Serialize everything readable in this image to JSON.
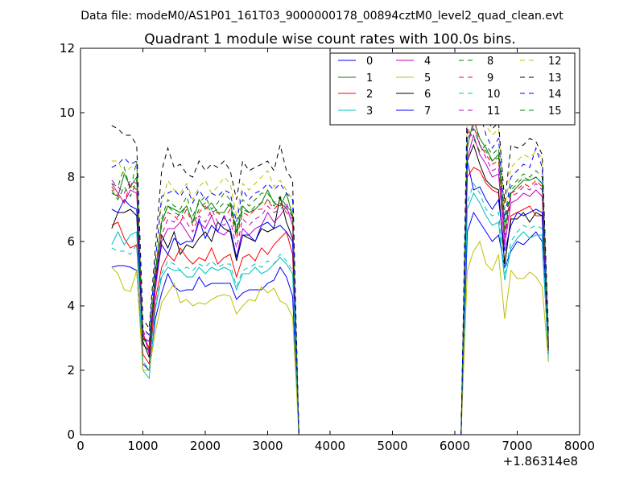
{
  "figure": {
    "suptitle": "Data file: modeM0/AS1P01_161T03_9000000178_00894cztM0_level2_quad_clean.evt"
  },
  "chart_data": {
    "type": "line",
    "title": "Quadrant 1 module wise count rates with 100.0s bins.",
    "xlabel": "",
    "ylabel": "",
    "x_offset_label": "+1.86314e8",
    "xlim": [
      0,
      8000
    ],
    "ylim": [
      0,
      12
    ],
    "x_ticks": [
      0,
      1000,
      2000,
      3000,
      4000,
      5000,
      6000,
      7000,
      8000
    ],
    "y_ticks": [
      0,
      2,
      4,
      6,
      8,
      10,
      12
    ],
    "x_tick_labels": [
      "0",
      "1000",
      "2000",
      "3000",
      "4000",
      "5000",
      "6000",
      "7000",
      "8000"
    ],
    "y_tick_labels": [
      "0",
      "2",
      "4",
      "6",
      "8",
      "10",
      "12"
    ],
    "legend_position": "upper right",
    "x": [
      500,
      600,
      700,
      800,
      900,
      1000,
      1100,
      1200,
      1300,
      1400,
      1500,
      1600,
      1700,
      1800,
      1900,
      2000,
      2100,
      2200,
      2300,
      2400,
      2500,
      2600,
      2700,
      2800,
      2900,
      3000,
      3100,
      3200,
      3300,
      3400,
      3500,
      3600,
      3700,
      3800,
      3900,
      4000,
      4100,
      4200,
      4300,
      4400,
      4500,
      4600,
      4700,
      4800,
      4900,
      5000,
      5100,
      5200,
      5300,
      5400,
      5500,
      5600,
      5700,
      5800,
      5900,
      6000,
      6100,
      6200,
      6300,
      6400,
      6500,
      6600,
      6700,
      6800,
      6900,
      7000,
      7100,
      7200,
      7300,
      7400,
      7500
    ],
    "series": [
      {
        "name": "0",
        "color": "#0000ff",
        "dash": "solid",
        "values": [
          5.2,
          5.25,
          5.25,
          5.2,
          5.1,
          2.2,
          2.0,
          3.6,
          4.4,
          5.0,
          4.6,
          4.45,
          4.5,
          4.5,
          4.9,
          4.6,
          4.7,
          4.7,
          4.7,
          4.7,
          4.2,
          4.4,
          4.5,
          4.5,
          4.5,
          4.7,
          4.8,
          5.2,
          4.9,
          4.3,
          0,
          0,
          0,
          0,
          0,
          0,
          0,
          0,
          0,
          0,
          0,
          0,
          0,
          0,
          0,
          0,
          0,
          0,
          0,
          0,
          0,
          0,
          0,
          0,
          0,
          0,
          0,
          6.3,
          6.9,
          6.6,
          6.3,
          6.0,
          6.2,
          5.2,
          5.7,
          6.0,
          5.9,
          6.1,
          6.3,
          6.0,
          2.5
        ]
      },
      {
        "name": "1",
        "color": "#008000",
        "dash": "solid",
        "values": [
          7.5,
          7.4,
          8.1,
          7.7,
          8.0,
          2.8,
          2.6,
          5.0,
          6.6,
          7.1,
          7.0,
          6.9,
          7.1,
          6.6,
          7.3,
          7.0,
          7.2,
          6.9,
          6.9,
          7.2,
          6.3,
          7.1,
          6.9,
          7.0,
          7.2,
          7.6,
          7.2,
          7.1,
          7.5,
          6.8,
          0,
          0,
          0,
          0,
          0,
          0,
          0,
          0,
          0,
          0,
          0,
          0,
          0,
          0,
          0,
          0,
          0,
          0,
          0,
          0,
          0,
          0,
          0,
          0,
          0,
          0,
          0,
          8.9,
          9.8,
          9.2,
          8.9,
          8.5,
          8.7,
          6.3,
          7.5,
          7.7,
          7.9,
          7.9,
          8.0,
          7.8,
          2.7
        ]
      },
      {
        "name": "2",
        "color": "#ff0000",
        "dash": "solid",
        "values": [
          6.5,
          6.6,
          6.1,
          5.8,
          5.9,
          2.5,
          2.2,
          4.2,
          5.2,
          5.6,
          5.4,
          5.8,
          5.5,
          5.3,
          5.5,
          5.4,
          5.8,
          5.3,
          5.5,
          5.6,
          4.9,
          5.5,
          5.6,
          5.4,
          5.8,
          5.6,
          5.9,
          6.1,
          6.3,
          5.6,
          0,
          0,
          0,
          0,
          0,
          0,
          0,
          0,
          0,
          0,
          0,
          0,
          0,
          0,
          0,
          0,
          0,
          0,
          0,
          0,
          0,
          0,
          0,
          0,
          0,
          0,
          0,
          8.0,
          8.3,
          8.2,
          7.8,
          7.6,
          7.5,
          5.3,
          6.8,
          6.9,
          7.0,
          7.1,
          6.8,
          6.8,
          2.6
        ]
      },
      {
        "name": "3",
        "color": "#00bfbf",
        "dash": "solid",
        "values": [
          5.9,
          6.3,
          5.9,
          6.2,
          6.3,
          2.0,
          1.75,
          3.9,
          4.9,
          5.2,
          5.1,
          5.1,
          4.9,
          4.9,
          5.2,
          5.0,
          5.2,
          5.1,
          5.2,
          5.1,
          4.5,
          5.0,
          5.0,
          5.2,
          5.0,
          5.1,
          5.3,
          5.5,
          5.3,
          5.0,
          0,
          0,
          0,
          0,
          0,
          0,
          0,
          0,
          0,
          0,
          0,
          0,
          0,
          0,
          0,
          0,
          0,
          0,
          0,
          0,
          0,
          0,
          0,
          0,
          0,
          0,
          0,
          7.0,
          7.5,
          7.2,
          6.8,
          6.5,
          6.6,
          4.8,
          5.8,
          6.1,
          6.3,
          6.1,
          6.2,
          6.2,
          2.3
        ]
      },
      {
        "name": "4",
        "color": "#bf00bf",
        "dash": "solid",
        "values": [
          7.8,
          7.5,
          7.2,
          7.6,
          7.5,
          3.2,
          2.5,
          4.5,
          6.0,
          6.4,
          6.4,
          6.6,
          6.3,
          6.0,
          6.6,
          6.4,
          6.8,
          6.3,
          6.2,
          6.4,
          5.5,
          6.4,
          6.2,
          6.4,
          6.5,
          6.9,
          6.6,
          6.8,
          7.1,
          6.5,
          0,
          0,
          0,
          0,
          0,
          0,
          0,
          0,
          0,
          0,
          0,
          0,
          0,
          0,
          0,
          0,
          0,
          0,
          0,
          0,
          0,
          0,
          0,
          0,
          0,
          0,
          0,
          8.6,
          9.3,
          8.7,
          8.4,
          8.0,
          8.1,
          5.9,
          7.2,
          7.3,
          7.5,
          7.4,
          7.6,
          7.4,
          2.8
        ]
      },
      {
        "name": "5",
        "color": "#bfbf00",
        "dash": "solid",
        "values": [
          5.2,
          5.0,
          4.5,
          4.45,
          5.1,
          2.0,
          2.0,
          3.2,
          4.1,
          4.4,
          4.7,
          4.1,
          4.2,
          4.0,
          4.1,
          4.05,
          4.2,
          4.3,
          4.35,
          4.3,
          3.75,
          4.0,
          4.2,
          4.15,
          4.6,
          4.4,
          4.55,
          4.15,
          4.05,
          3.65,
          0,
          0,
          0,
          0,
          0,
          0,
          0,
          0,
          0,
          0,
          0,
          0,
          0,
          0,
          0,
          0,
          0,
          0,
          0,
          0,
          0,
          0,
          0,
          0,
          0,
          0,
          0,
          5.1,
          5.7,
          6.0,
          5.3,
          5.1,
          5.6,
          3.6,
          5.1,
          4.85,
          4.85,
          5.05,
          4.9,
          4.6,
          2.25
        ]
      },
      {
        "name": "6",
        "color": "#000000",
        "dash": "solid",
        "values": [
          6.4,
          6.9,
          6.9,
          7.0,
          6.8,
          2.9,
          2.4,
          4.8,
          6.2,
          5.8,
          6.3,
          5.6,
          5.9,
          5.8,
          6.1,
          6.3,
          6.0,
          6.6,
          6.4,
          6.3,
          5.4,
          6.2,
          6.1,
          6.0,
          6.4,
          6.3,
          6.4,
          7.4,
          6.6,
          6.1,
          0,
          0,
          0,
          0,
          0,
          0,
          0,
          0,
          0,
          0,
          0,
          0,
          0,
          0,
          0,
          0,
          0,
          0,
          0,
          0,
          0,
          0,
          0,
          0,
          0,
          0,
          0,
          8.5,
          9.0,
          8.4,
          7.9,
          7.7,
          7.6,
          5.3,
          6.7,
          6.7,
          6.9,
          6.6,
          6.9,
          6.8,
          2.6
        ]
      },
      {
        "name": "7",
        "color": "#0000ff",
        "dash": "solid",
        "values": [
          7.0,
          6.9,
          7.3,
          7.1,
          7.0,
          3.0,
          2.9,
          4.7,
          5.9,
          5.6,
          6.1,
          5.9,
          6.0,
          6.0,
          6.7,
          6.1,
          6.5,
          6.3,
          6.8,
          6.4,
          5.5,
          6.2,
          6.2,
          6.0,
          6.5,
          6.6,
          6.4,
          6.5,
          6.3,
          6.0,
          0,
          0,
          0,
          0,
          0,
          0,
          0,
          0,
          0,
          0,
          0,
          0,
          0,
          0,
          0,
          0,
          0,
          0,
          0,
          0,
          0,
          0,
          0,
          0,
          0,
          0,
          0,
          8.5,
          7.6,
          7.7,
          7.3,
          7.0,
          7.3,
          5.7,
          6.5,
          6.9,
          6.8,
          6.9,
          7.0,
          6.9,
          2.8
        ]
      },
      {
        "name": "8",
        "color": "#008000",
        "dash": "dashed",
        "values": [
          7.8,
          7.7,
          8.3,
          7.6,
          8.5,
          3.0,
          2.7,
          5.1,
          6.7,
          7.3,
          7.1,
          7.0,
          7.4,
          6.8,
          7.2,
          7.4,
          7.0,
          7.2,
          7.5,
          7.3,
          6.4,
          7.3,
          7.1,
          7.3,
          7.5,
          7.5,
          7.2,
          7.4,
          7.1,
          6.9,
          0,
          0,
          0,
          0,
          0,
          0,
          0,
          0,
          0,
          0,
          0,
          0,
          0,
          0,
          0,
          0,
          0,
          0,
          0,
          0,
          0,
          0,
          0,
          0,
          0,
          0,
          0,
          9.5,
          9.2,
          8.8,
          9.0,
          8.7,
          8.9,
          6.6,
          7.7,
          7.9,
          8.1,
          8.0,
          8.2,
          8.0,
          2.9
        ]
      },
      {
        "name": "9",
        "color": "#ff0000",
        "dash": "dashed",
        "values": [
          7.7,
          7.4,
          7.2,
          7.8,
          7.6,
          3.1,
          2.7,
          4.9,
          6.5,
          6.9,
          6.8,
          6.6,
          7.0,
          6.5,
          6.9,
          7.1,
          6.8,
          6.9,
          6.7,
          7.0,
          6.1,
          6.9,
          6.8,
          7.0,
          7.0,
          7.3,
          7.0,
          7.2,
          6.9,
          6.7,
          0,
          0,
          0,
          0,
          0,
          0,
          0,
          0,
          0,
          0,
          0,
          0,
          0,
          0,
          0,
          0,
          0,
          0,
          0,
          0,
          0,
          0,
          0,
          0,
          0,
          0,
          0,
          9.3,
          9.9,
          9.0,
          8.7,
          8.4,
          8.5,
          6.2,
          7.5,
          7.6,
          7.8,
          7.7,
          7.9,
          7.7,
          2.8
        ]
      },
      {
        "name": "10",
        "color": "#00bfbf",
        "dash": "dashed",
        "values": [
          5.8,
          5.7,
          5.7,
          5.6,
          5.9,
          2.3,
          2.0,
          4.0,
          5.0,
          5.4,
          5.3,
          5.1,
          5.2,
          5.1,
          5.3,
          5.2,
          5.4,
          5.2,
          5.3,
          5.3,
          4.6,
          5.1,
          5.2,
          5.3,
          5.2,
          5.4,
          5.3,
          5.6,
          5.4,
          5.1,
          0,
          0,
          0,
          0,
          0,
          0,
          0,
          0,
          0,
          0,
          0,
          0,
          0,
          0,
          0,
          0,
          0,
          0,
          0,
          0,
          0,
          0,
          0,
          0,
          0,
          0,
          0,
          7.2,
          7.8,
          7.5,
          7.0,
          6.8,
          6.9,
          5.0,
          6.0,
          6.3,
          6.5,
          6.4,
          6.5,
          6.4,
          2.4
        ]
      },
      {
        "name": "11",
        "color": "#bf00bf",
        "dash": "dashed",
        "values": [
          7.9,
          7.7,
          7.5,
          7.9,
          7.8,
          3.3,
          2.6,
          4.7,
          6.2,
          6.7,
          6.6,
          6.9,
          6.6,
          6.3,
          6.8,
          6.6,
          7.0,
          6.6,
          6.5,
          6.7,
          5.8,
          6.7,
          6.5,
          6.7,
          6.8,
          7.1,
          6.9,
          7.0,
          7.2,
          6.7,
          0,
          0,
          0,
          0,
          0,
          0,
          0,
          0,
          0,
          0,
          0,
          0,
          0,
          0,
          0,
          0,
          0,
          0,
          0,
          0,
          0,
          0,
          0,
          0,
          0,
          0,
          0,
          9.0,
          9.6,
          9.0,
          8.6,
          8.2,
          8.3,
          6.1,
          7.4,
          7.5,
          7.7,
          7.6,
          7.8,
          7.6,
          2.9
        ]
      },
      {
        "name": "12",
        "color": "#bfbf00",
        "dash": "dashed",
        "values": [
          8.5,
          8.5,
          8.1,
          8.3,
          8.4,
          3.4,
          3.0,
          5.4,
          7.2,
          7.9,
          7.6,
          7.5,
          7.8,
          7.3,
          7.7,
          7.9,
          7.5,
          7.7,
          8.0,
          7.8,
          6.8,
          7.8,
          7.6,
          7.8,
          8.0,
          8.2,
          7.7,
          7.9,
          7.6,
          7.3,
          0,
          0,
          0,
          0,
          0,
          0,
          0,
          0,
          0,
          0,
          0,
          0,
          0,
          0,
          0,
          0,
          0,
          0,
          0,
          0,
          0,
          0,
          0,
          0,
          0,
          0,
          0,
          10.0,
          10.8,
          10.2,
          9.6,
          9.3,
          9.5,
          7.0,
          8.3,
          8.5,
          8.7,
          8.6,
          8.8,
          8.6,
          3.1
        ]
      },
      {
        "name": "13",
        "color": "#000000",
        "dash": "dashed",
        "values": [
          9.6,
          9.5,
          9.3,
          9.3,
          9.0,
          3.6,
          3.3,
          5.8,
          8.2,
          8.9,
          8.3,
          8.4,
          8.1,
          8.0,
          8.5,
          8.2,
          8.4,
          8.3,
          8.5,
          8.2,
          7.3,
          8.5,
          8.2,
          8.3,
          8.4,
          8.5,
          8.2,
          9.0,
          8.2,
          7.9,
          0,
          0,
          0,
          0,
          0,
          0,
          0,
          0,
          0,
          0,
          0,
          0,
          0,
          0,
          0,
          0,
          0,
          0,
          0,
          0,
          0,
          0,
          0,
          0,
          0,
          0,
          0,
          10.5,
          11.0,
          10.5,
          9.9,
          9.5,
          9.7,
          7.2,
          9.0,
          8.9,
          9.0,
          9.2,
          9.1,
          8.7,
          3.2
        ]
      },
      {
        "name": "14",
        "color": "#0000ff",
        "dash": "dashed",
        "values": [
          8.3,
          8.4,
          8.6,
          8.4,
          8.5,
          3.3,
          3.1,
          5.4,
          7.4,
          7.5,
          7.6,
          7.4,
          7.7,
          7.2,
          7.6,
          7.3,
          7.5,
          7.4,
          7.6,
          7.5,
          6.6,
          7.6,
          7.3,
          7.5,
          7.6,
          7.8,
          7.6,
          7.8,
          7.5,
          7.3,
          0,
          0,
          0,
          0,
          0,
          0,
          0,
          0,
          0,
          0,
          0,
          0,
          0,
          0,
          0,
          0,
          0,
          0,
          0,
          0,
          0,
          0,
          0,
          0,
          0,
          0,
          0,
          9.6,
          10.3,
          10.0,
          9.3,
          8.9,
          9.2,
          6.7,
          8.0,
          8.2,
          8.4,
          8.3,
          8.9,
          8.3,
          3.0
        ]
      },
      {
        "name": "15",
        "color": "#008000",
        "dash": "dashed",
        "values": [
          7.6,
          7.3,
          7.7,
          7.4,
          7.9,
          3.0,
          2.8,
          5.0,
          6.6,
          7.1,
          6.9,
          6.8,
          7.1,
          6.6,
          7.0,
          7.2,
          6.9,
          7.0,
          7.2,
          7.1,
          6.2,
          7.0,
          6.9,
          7.1,
          7.2,
          7.3,
          7.1,
          7.3,
          7.0,
          6.8,
          0,
          0,
          0,
          0,
          0,
          0,
          0,
          0,
          0,
          0,
          0,
          0,
          0,
          0,
          0,
          0,
          0,
          0,
          0,
          0,
          0,
          0,
          0,
          0,
          0,
          0,
          0,
          9.2,
          9.5,
          9.0,
          8.8,
          8.5,
          8.6,
          6.4,
          7.6,
          7.8,
          8.0,
          7.9,
          8.0,
          7.8,
          2.8
        ]
      }
    ]
  }
}
